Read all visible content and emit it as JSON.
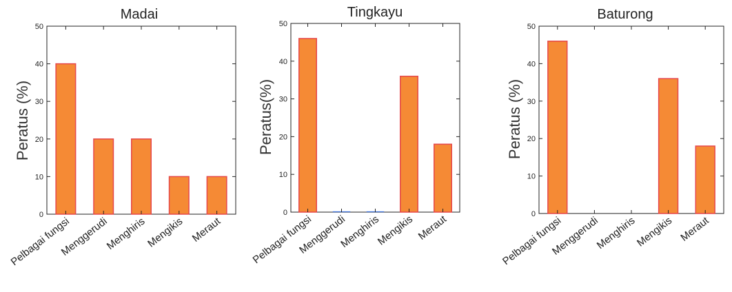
{
  "chart_data": [
    {
      "type": "bar",
      "title": "Madai",
      "ylabel": "Peratus (%)",
      "xlabel": "",
      "categories": [
        "Pelbagai fungsi",
        "Menggerudi",
        "Menghiris",
        "Mengikis",
        "Meraut"
      ],
      "values": [
        40,
        20,
        20,
        10,
        10
      ],
      "ylim": [
        0,
        50
      ],
      "yticks": [
        "0",
        "10",
        "20",
        "30",
        "40",
        "50"
      ],
      "grid": false,
      "bar_color": "#f58a35",
      "edge_color": "#e5484d"
    },
    {
      "type": "bar",
      "title": "Tingkayu",
      "ylabel": "Peratus(%)",
      "xlabel": "",
      "categories": [
        "Pelbagai fungsi",
        "Menggerudi",
        "Menghiris",
        "Mengikis",
        "Meraut"
      ],
      "values": [
        46,
        0.2,
        0.2,
        36,
        18
      ],
      "ylim": [
        0,
        50
      ],
      "yticks": [
        "0",
        "10",
        "20",
        "30",
        "40",
        "50"
      ],
      "grid": false,
      "bar_color": "#f58a35",
      "edge_color": "#e5484d"
    },
    {
      "type": "bar",
      "title": "Baturong",
      "ylabel": "Peratus (%)",
      "xlabel": "",
      "categories": [
        "Pelbagai fungsi",
        "Menggerudi",
        "Menghiris",
        "Mengikis",
        "Meraut"
      ],
      "values": [
        46,
        0,
        0,
        36,
        18
      ],
      "ylim": [
        0,
        50
      ],
      "yticks": [
        "0",
        "10",
        "20",
        "30",
        "40",
        "50"
      ],
      "grid": false,
      "bar_color": "#f58a35",
      "edge_color": "#e5484d"
    }
  ]
}
